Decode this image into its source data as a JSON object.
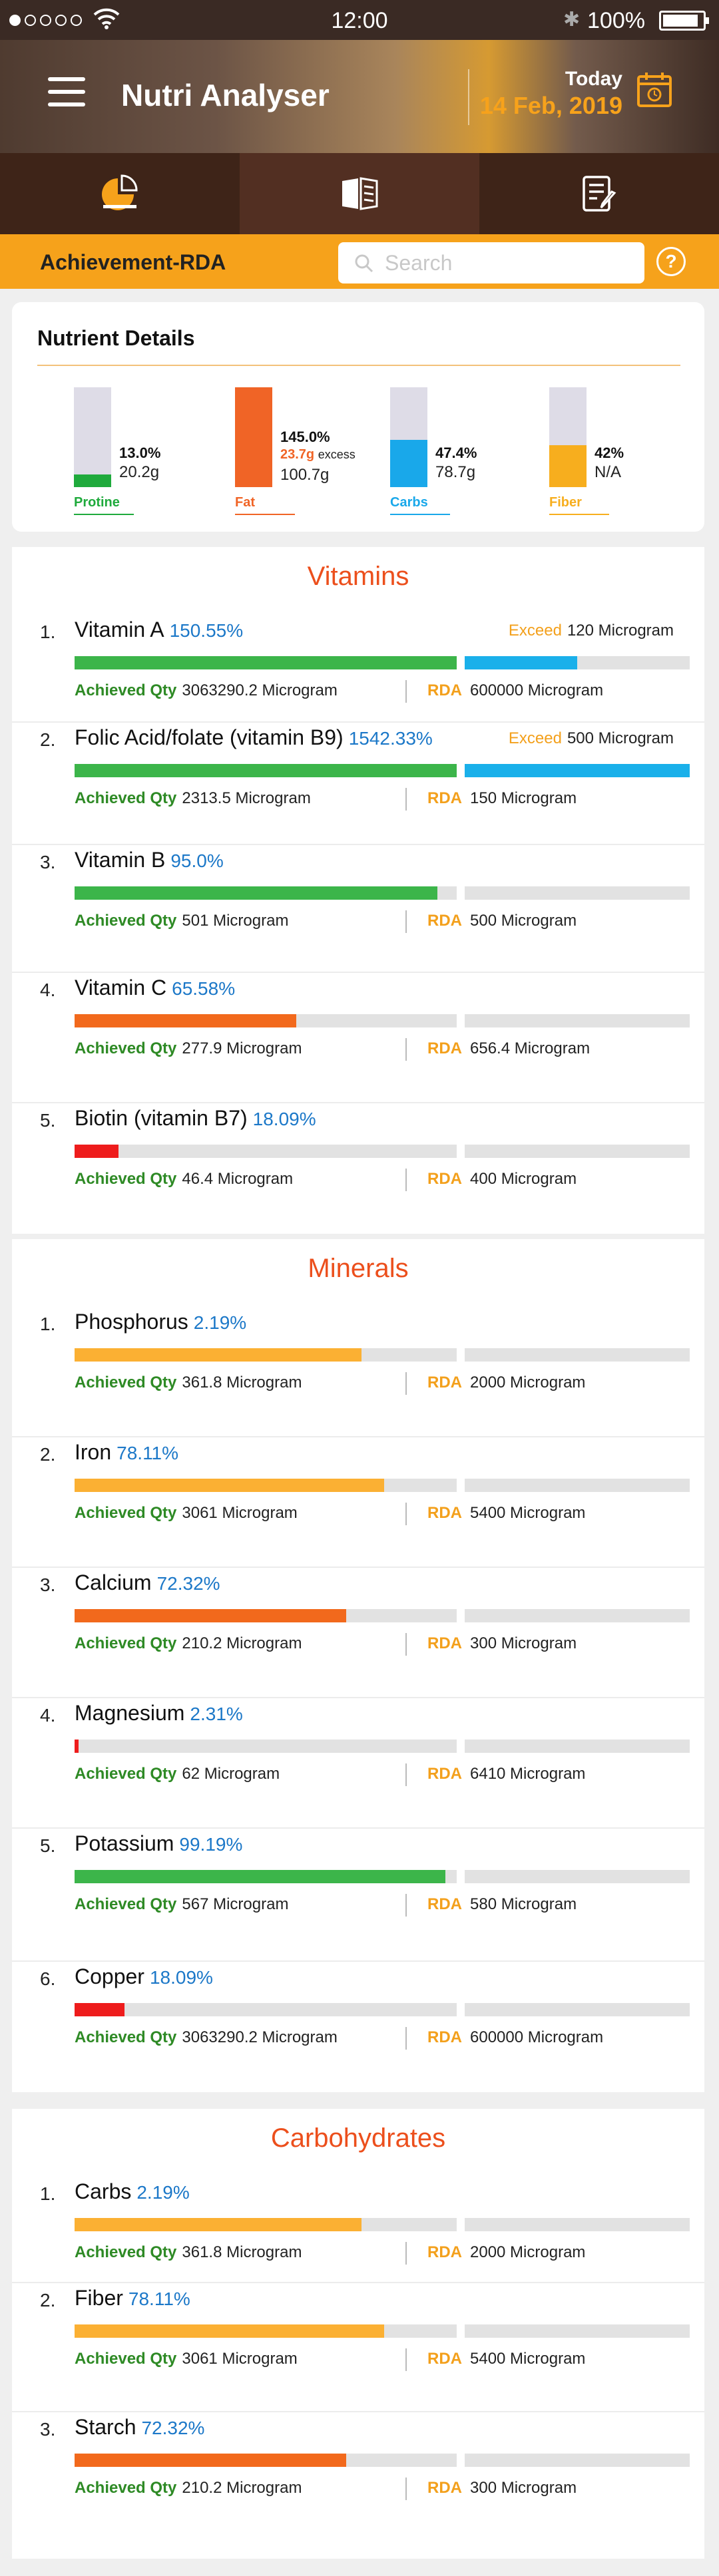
{
  "status_bar": {
    "time": "12:00",
    "battery": "100%",
    "battery_level": 0.9
  },
  "header": {
    "title": "Nutri Analyser",
    "today_label": "Today",
    "date": "14 Feb, 2019"
  },
  "tabs": [
    {
      "icon": "pie-chart-icon"
    },
    {
      "icon": "book-icon"
    },
    {
      "icon": "notes-edit-icon"
    }
  ],
  "subheader": {
    "title": "Achievement-RDA",
    "search_placeholder": "Search",
    "help_label": "?"
  },
  "nutrient_details": {
    "title": "Nutrient Details",
    "items": [
      {
        "label": "Protine",
        "percent": "13.0%",
        "qty": "20.2g",
        "excess": "",
        "excess_label": "",
        "fill_fraction": 0.13,
        "color": "#1faa3c"
      },
      {
        "label": "Fat",
        "percent": "145.0%",
        "qty": "100.7g",
        "excess": "23.7g",
        "excess_label": "excess",
        "fill_fraction": 1.0,
        "color": "#f06426"
      },
      {
        "label": "Carbs",
        "percent": "47.4%",
        "qty": "78.7g",
        "excess": "",
        "excess_label": "",
        "fill_fraction": 0.474,
        "color": "#19a8ea"
      },
      {
        "label": "Fiber",
        "percent": "42%",
        "qty": "N/A",
        "excess": "",
        "excess_label": "",
        "fill_fraction": 0.42,
        "color": "#f7ae1e"
      }
    ]
  },
  "labels": {
    "achieved": "Achieved Qty",
    "rda": "RDA",
    "exceed": "Exceed"
  },
  "sections": [
    {
      "title": "Vitamins",
      "rows": [
        {
          "num": "1.",
          "name": "Vitamin A",
          "percent": "150.55%",
          "achieved": "3063290.2 Microgram",
          "rda": "600000 Microgram",
          "exceed": "120 Microgram",
          "fill": 1.0,
          "fill2": 0.5,
          "color": "#3cb54a"
        },
        {
          "num": "2.",
          "name": "Folic Acid/folate (vitamin B9)",
          "percent": "1542.33%",
          "achieved": "2313.5 Microgram",
          "rda": "150 Microgram",
          "exceed": "500 Microgram",
          "fill": 1.0,
          "fill2": 1.0,
          "color": "#3cb54a"
        },
        {
          "num": "3.",
          "name": "Vitamin B",
          "percent": "95.0%",
          "achieved": "501 Microgram",
          "rda": "500 Microgram",
          "exceed": "",
          "fill": 0.95,
          "fill2": 0,
          "color": "#3cb54a"
        },
        {
          "num": "4.",
          "name": "Vitamin C",
          "percent": "65.58%",
          "achieved": "277.9 Microgram",
          "rda": "656.4 Microgram",
          "exceed": "",
          "fill": 0.58,
          "fill2": 0,
          "color": "#f2691c"
        },
        {
          "num": "5.",
          "name": "Biotin (vitamin B7)",
          "percent": "18.09%",
          "achieved": "46.4 Microgram",
          "rda": "400 Microgram",
          "exceed": "",
          "fill": 0.115,
          "fill2": 0,
          "color": "#ee1c1c"
        }
      ]
    },
    {
      "title": "Minerals",
      "rows": [
        {
          "num": "1.",
          "name": "Phosphorus",
          "percent": "2.19%",
          "achieved": "361.8 Microgram",
          "rda": "2000 Microgram",
          "exceed": "",
          "fill": 0.75,
          "fill2": 0,
          "color": "#fbb033"
        },
        {
          "num": "2.",
          "name": "Iron",
          "percent": "78.11%",
          "achieved": "3061 Microgram",
          "rda": "5400 Microgram",
          "exceed": "",
          "fill": 0.81,
          "fill2": 0,
          "color": "#fbb033"
        },
        {
          "num": "3.",
          "name": "Calcium",
          "percent": "72.32%",
          "achieved": "210.2 Microgram",
          "rda": "300 Microgram",
          "exceed": "",
          "fill": 0.71,
          "fill2": 0,
          "color": "#f2691c"
        },
        {
          "num": "4.",
          "name": "Magnesium",
          "percent": "2.31%",
          "achieved": "62 Microgram",
          "rda": "6410 Microgram",
          "exceed": "",
          "fill": 0.01,
          "fill2": 0,
          "color": "#ee1c1c"
        },
        {
          "num": "5.",
          "name": "Potassium",
          "percent": "99.19%",
          "achieved": "567 Microgram",
          "rda": "580 Microgram",
          "exceed": "",
          "fill": 0.97,
          "fill2": 0,
          "color": "#3cb54a"
        },
        {
          "num": "6.",
          "name": "Copper",
          "percent": "18.09%",
          "achieved": "3063290.2 Microgram",
          "rda": "600000 Microgram",
          "exceed": "",
          "fill": 0.13,
          "fill2": 0,
          "color": "#ee1c1c"
        }
      ]
    },
    {
      "title": "Carbohydrates",
      "rows": [
        {
          "num": "1.",
          "name": "Carbs",
          "percent": "2.19%",
          "achieved": "361.8 Microgram",
          "rda": "2000 Microgram",
          "exceed": "",
          "fill": 0.75,
          "fill2": 0,
          "color": "#fbb033"
        },
        {
          "num": "2.",
          "name": "Fiber",
          "percent": "78.11%",
          "achieved": "3061 Microgram",
          "rda": "5400 Microgram",
          "exceed": "",
          "fill": 0.81,
          "fill2": 0,
          "color": "#fbb033"
        },
        {
          "num": "3.",
          "name": "Starch",
          "percent": "72.32%",
          "achieved": "210.2 Microgram",
          "rda": "300 Microgram",
          "exceed": "",
          "fill": 0.71,
          "fill2": 0,
          "color": "#f2691c"
        }
      ]
    }
  ]
}
